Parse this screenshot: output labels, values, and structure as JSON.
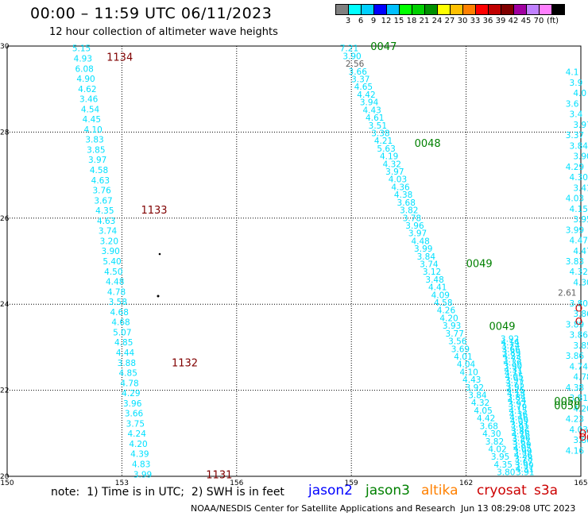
{
  "header": {
    "title": "00:00 – 11:59 UTC 06/11/2023",
    "subtitle": "12 hour collection of altimeter wave heights"
  },
  "legend": {
    "unit": "(ft)",
    "colors": [
      "#808080",
      "#00ffff",
      "#00d0ff",
      "#0000ff",
      "#00c0ff",
      "#00ff00",
      "#00d000",
      "#009000",
      "#ffff00",
      "#ffc000",
      "#ff8000",
      "#ff0000",
      "#c00000",
      "#800000",
      "#a000a0",
      "#c080ff",
      "#ff80ff",
      "#000000"
    ],
    "labels": [
      "3",
      "6",
      "9",
      "12",
      "15",
      "18",
      "21",
      "24",
      "27",
      "30",
      "33",
      "36",
      "39",
      "42",
      "45",
      "70"
    ]
  },
  "axes": {
    "x_ticks": [
      "150",
      "153",
      "156",
      "159",
      "162",
      "165"
    ],
    "y_ticks": [
      "30",
      "28",
      "26",
      "24",
      "22",
      "20"
    ]
  },
  "passes": [
    {
      "label": "1134",
      "lon": 152.6,
      "lat": 29.75,
      "color": "#800000"
    },
    {
      "label": "1133",
      "lon": 153.5,
      "lat": 26.2,
      "color": "#800000"
    },
    {
      "label": "1132",
      "lon": 154.3,
      "lat": 22.65,
      "color": "#800000"
    },
    {
      "label": "1131",
      "lon": 155.2,
      "lat": 20.05,
      "color": "#800000"
    },
    {
      "label": "0047",
      "lon": 159.5,
      "lat": 30.0,
      "color": "#008000"
    },
    {
      "label": "0048",
      "lon": 160.65,
      "lat": 27.75,
      "color": "#008000"
    },
    {
      "label": "0049",
      "lon": 162.0,
      "lat": 24.95,
      "color": "#008000"
    },
    {
      "label": "0049",
      "lon": 162.6,
      "lat": 23.5,
      "color": "#008000"
    },
    {
      "label": "0050",
      "lon": 164.3,
      "lat": 21.75,
      "color": "#008000"
    },
    {
      "label": "0050",
      "lon": 164.3,
      "lat": 21.65,
      "color": "#008000"
    }
  ],
  "track_a": {
    "color": "#00e0ff",
    "values": [
      "5.15",
      "4.93",
      "6.08",
      "4.90",
      "4.62",
      "3.46",
      "4.54",
      "4.45",
      "4.10",
      "3.83",
      "3.85",
      "3.97",
      "4.58",
      "4.63",
      "3.76",
      "3.67",
      "4.35",
      "4.63",
      "3.74",
      "3.20",
      "3.90",
      "5.40",
      "4.50",
      "4.48",
      "4.78",
      "3.58",
      "4.68",
      "4.68",
      "5.07",
      "4.85",
      "4.44",
      "3.88",
      "4.85",
      "4.78",
      "4.29",
      "3.96",
      "3.66",
      "3.75",
      "4.24",
      "4.20",
      "4.39",
      "4.83",
      "3.99"
    ]
  },
  "track_b": {
    "color": "#00e0ff",
    "values": [
      "7.21",
      "3.90",
      "2.56",
      "3.66",
      "3.37",
      "4.65",
      "4.42",
      "3.94",
      "4.43",
      "4.61",
      "3.51",
      "3.38",
      "4.21",
      "5.63",
      "4.19",
      "4.32",
      "3.97",
      "4.03",
      "4.36",
      "4.38",
      "3.68",
      "3.82",
      "3.78",
      "3.96",
      "3.97",
      "4.48",
      "3.99",
      "3.84",
      "3.74",
      "3.12",
      "3.48",
      "4.41",
      "4.09",
      "4.58",
      "4.26",
      "4.20",
      "3.93",
      "3.77",
      "3.56",
      "3.69",
      "4.01",
      "4.04",
      "4.10",
      "4.43",
      "3.92",
      "3.84",
      "4.32",
      "4.05",
      "4.42",
      "3.68",
      "4.30",
      "3.82",
      "4.02",
      "3.95",
      "4.35",
      "3.80"
    ]
  },
  "track_c": {
    "color": "#00e0ff",
    "values": [
      "3.92",
      "4.14",
      "3.74",
      "3.66",
      "3.89",
      "4.23",
      "3.75",
      "4.36",
      "3.90",
      "4.31",
      "4.11",
      "4.05",
      "3.97",
      "3.77",
      "3.92",
      "4.25",
      "4.18",
      "3.84",
      "4.24",
      "3.97",
      "3.79",
      "4.15",
      "4.36",
      "4.46",
      "4.09",
      "3.81",
      "3.92",
      "3.86",
      "4.16",
      "3.96",
      "3.61",
      "3.89",
      "4.05",
      "3.99",
      "4.26",
      "3.78",
      "3.67",
      "3.99",
      "4.31",
      "3.91"
    ]
  },
  "right_edge": {
    "values": [
      "4.1",
      "3.9",
      "4.0",
      "3.6",
      "3.4",
      "3.97",
      "3.37",
      "3.84",
      "3.90",
      "4.29",
      "4.30",
      "3.41",
      "4.03",
      "4.15",
      "3.95",
      "3.99",
      "4.47",
      "4.47",
      "3.83",
      "4.32",
      "4.30",
      "2.61",
      "3.80",
      "3.86",
      "3.89",
      "3.86",
      "3.85",
      "3.86",
      "4.74",
      "4.78",
      "4.38",
      "3.81",
      "4.20",
      "4.23",
      "4.03",
      "3.86",
      "4.16"
    ],
    "red": [
      "O",
      "O",
      "O5",
      "O6"
    ]
  },
  "footer": {
    "note": "note:  1) Time is in UTC;  2) SWH is in feet",
    "missions": {
      "jason2": "jason2",
      "jason3": "jason3",
      "altika": "altika",
      "cryosat": "cryosat",
      "s3a": "s3a"
    },
    "credit": "NOAA/NESDIS Center for Satellite Applications and Research",
    "created": "Jun 13 08:29:08 UTC 2023"
  }
}
